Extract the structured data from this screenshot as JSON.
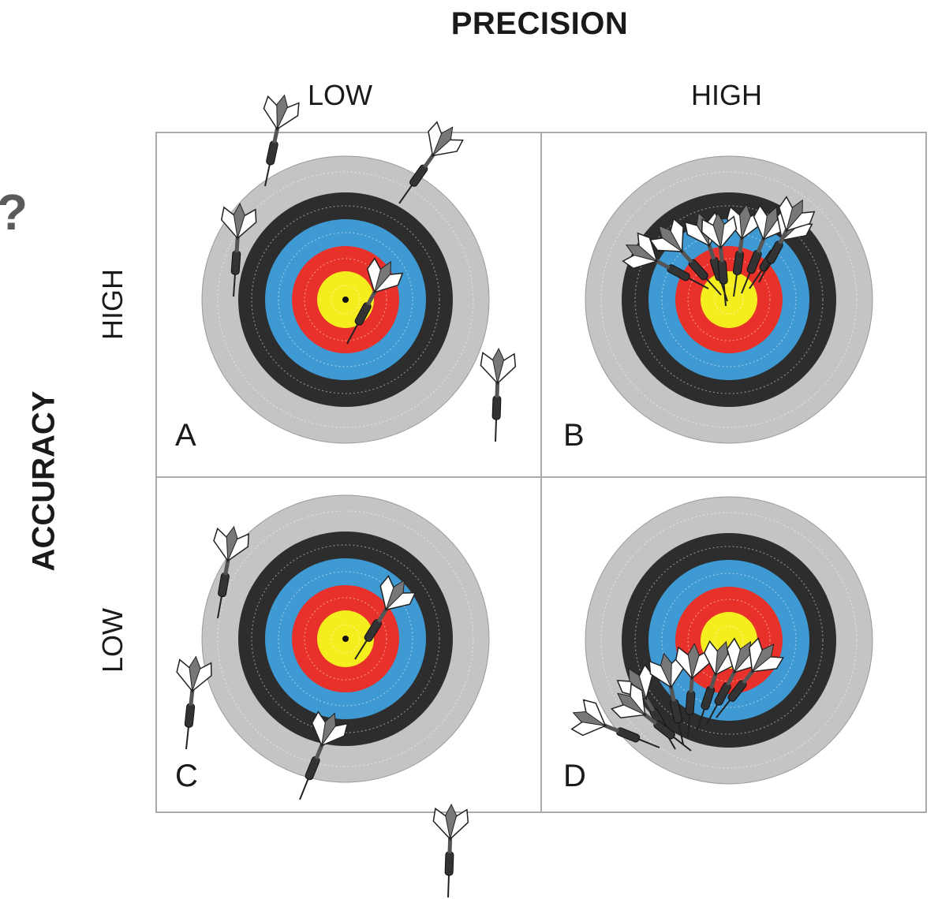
{
  "precision": {
    "title": "PRECISION",
    "low": "LOW",
    "high": "HIGH"
  },
  "accuracy": {
    "title": "ACCURACY",
    "high": "HIGH",
    "low": "LOW"
  },
  "edge_glyph": "?",
  "panels": [
    {
      "id": "A",
      "letter": "A",
      "accuracy": "high",
      "precision": "low"
    },
    {
      "id": "B",
      "letter": "B",
      "accuracy": "high",
      "precision": "high"
    },
    {
      "id": "C",
      "letter": "C",
      "accuracy": "low",
      "precision": "low"
    },
    {
      "id": "D",
      "letter": "D",
      "accuracy": "low",
      "precision": "high"
    }
  ],
  "colors": {
    "outer_ring": "#c4c4c4",
    "black_ring": "#2d2d2d",
    "blue_ring": "#3f9ad3",
    "red_ring": "#e8312b",
    "yellow_ring": "#f5ee1f",
    "grid_line": "#aaaaaa",
    "text": "#1a1a1a",
    "edge_glyph": "#5a5a5a"
  },
  "icon_names": [
    "dart-icon",
    "archery-target-icon"
  ]
}
